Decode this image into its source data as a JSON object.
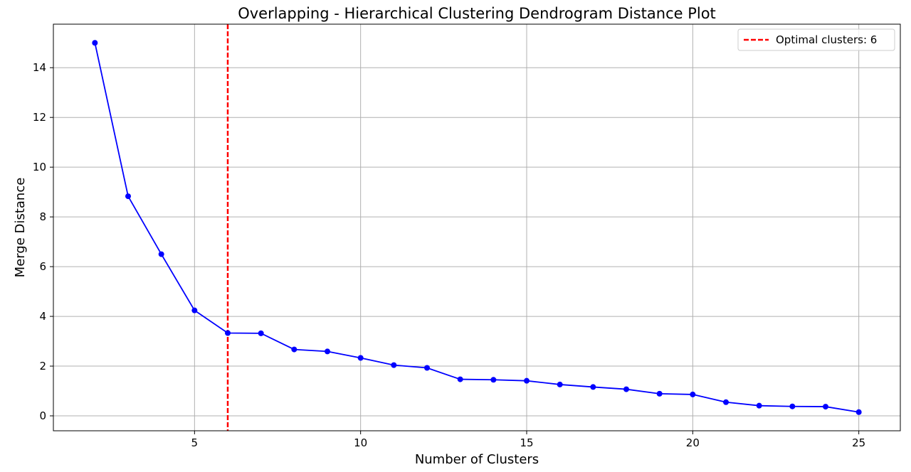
{
  "chart_data": {
    "type": "line",
    "title": "Overlapping - Hierarchical Clustering Dendrogram Distance Plot",
    "xlabel": "Number of Clusters",
    "ylabel": "Merge Distance",
    "xlim": [
      0.75,
      26.25
    ],
    "ylim": [
      -0.6,
      15.75
    ],
    "x_ticks": [
      5,
      10,
      15,
      20,
      25
    ],
    "y_ticks": [
      0,
      2,
      4,
      6,
      8,
      10,
      12,
      14
    ],
    "grid": true,
    "legend_position": "top-right",
    "series": [
      {
        "color": "#0000ff",
        "marker": "circle",
        "x": [
          2,
          3,
          4,
          5,
          6,
          7,
          8,
          9,
          10,
          11,
          12,
          13,
          14,
          15,
          16,
          17,
          18,
          19,
          20,
          21,
          22,
          23,
          24,
          25
        ],
        "y": [
          15.0,
          8.83,
          6.5,
          4.24,
          3.33,
          3.32,
          2.67,
          2.59,
          2.33,
          2.04,
          1.93,
          1.47,
          1.45,
          1.41,
          1.26,
          1.16,
          1.07,
          0.89,
          0.86,
          0.55,
          0.41,
          0.38,
          0.37,
          0.15
        ]
      }
    ],
    "annotations": [
      {
        "type": "vline",
        "x": 6,
        "label": "Optimal clusters: 6",
        "color": "#ff0000",
        "style": "dashed"
      }
    ]
  }
}
